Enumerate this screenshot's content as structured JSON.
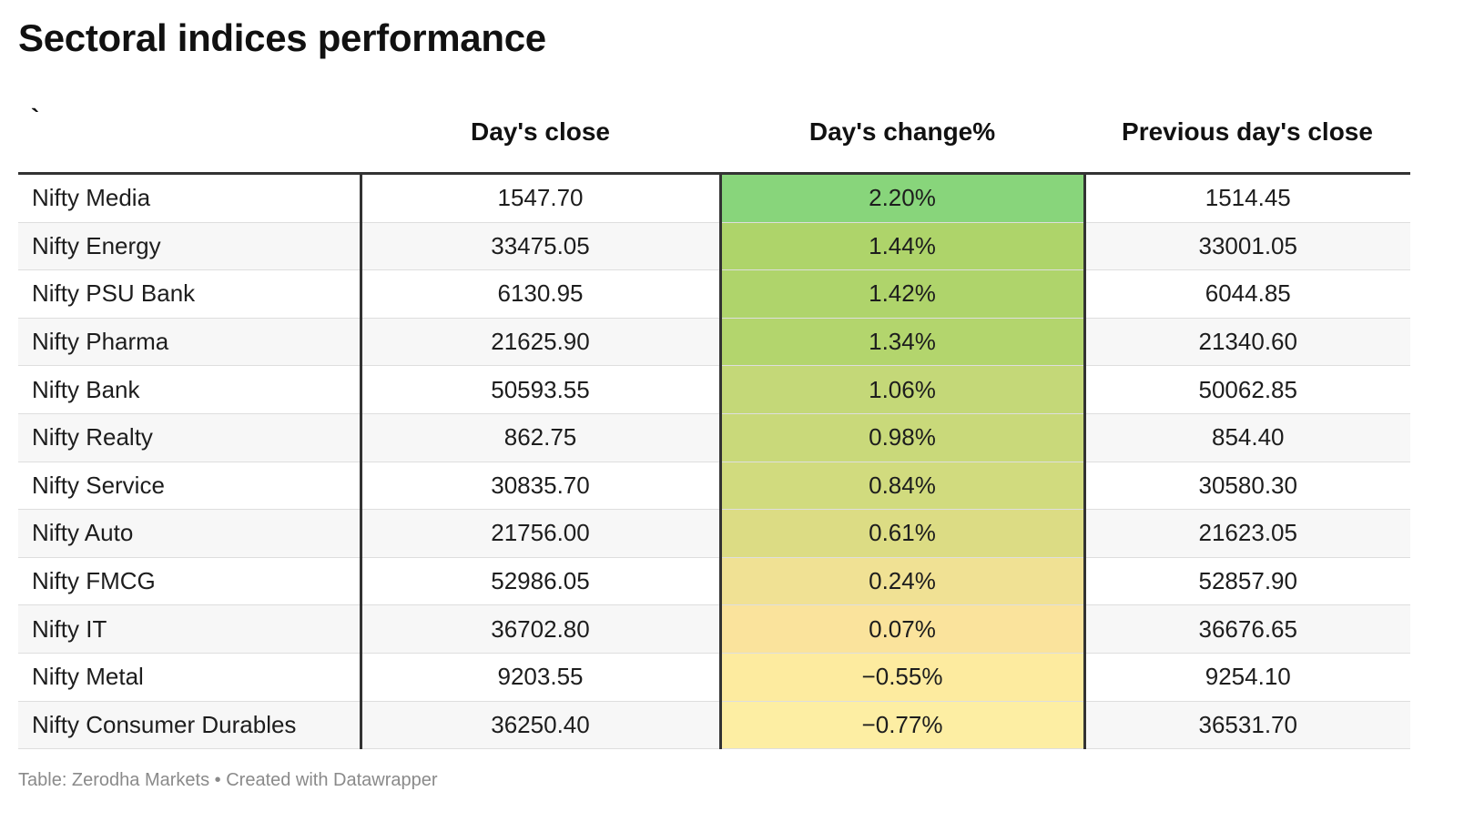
{
  "title": "Sectoral indices performance",
  "footer": "Table: Zerodha Markets • Created with Datawrapper",
  "chart_data": {
    "type": "table",
    "title": "Sectoral indices performance",
    "columns": [
      "`",
      "Day's close",
      "Day's change%",
      "Previous day's close"
    ],
    "rows": [
      {
        "name": "Nifty Media",
        "close": "1547.70",
        "change": "2.20%",
        "prev": "1514.45",
        "change_value": 2.2,
        "color": "#88d57b"
      },
      {
        "name": "Nifty Energy",
        "close": "33475.05",
        "change": "1.44%",
        "prev": "33001.05",
        "change_value": 1.44,
        "color": "#aed46a"
      },
      {
        "name": "Nifty PSU Bank",
        "close": "6130.95",
        "change": "1.42%",
        "prev": "6044.85",
        "change_value": 1.42,
        "color": "#afd46b"
      },
      {
        "name": "Nifty Pharma",
        "close": "21625.90",
        "change": "1.34%",
        "prev": "21340.60",
        "change_value": 1.34,
        "color": "#b3d56d"
      },
      {
        "name": "Nifty Bank",
        "close": "50593.55",
        "change": "1.06%",
        "prev": "50062.85",
        "change_value": 1.06,
        "color": "#c4d878"
      },
      {
        "name": "Nifty Realty",
        "close": "862.75",
        "change": "0.98%",
        "prev": "854.40",
        "change_value": 0.98,
        "color": "#c9d97a"
      },
      {
        "name": "Nifty Service",
        "close": "30835.70",
        "change": "0.84%",
        "prev": "30580.30",
        "change_value": 0.84,
        "color": "#d1db7e"
      },
      {
        "name": "Nifty Auto",
        "close": "21756.00",
        "change": "0.61%",
        "prev": "21623.05",
        "change_value": 0.61,
        "color": "#dcdc84"
      },
      {
        "name": "Nifty FMCG",
        "close": "52986.05",
        "change": "0.24%",
        "prev": "52857.90",
        "change_value": 0.24,
        "color": "#f0e194"
      },
      {
        "name": "Nifty IT",
        "close": "36702.80",
        "change": "0.07%",
        "prev": "36676.65",
        "change_value": 0.07,
        "color": "#fae39c"
      },
      {
        "name": "Nifty Metal",
        "close": "9203.55",
        "change": "−0.55%",
        "prev": "9254.10",
        "change_value": -0.55,
        "color": "#fdeb9f"
      },
      {
        "name": "Nifty Consumer Durables",
        "close": "36250.40",
        "change": "−0.77%",
        "prev": "36531.70",
        "change_value": -0.77,
        "color": "#fdeea3"
      }
    ]
  }
}
